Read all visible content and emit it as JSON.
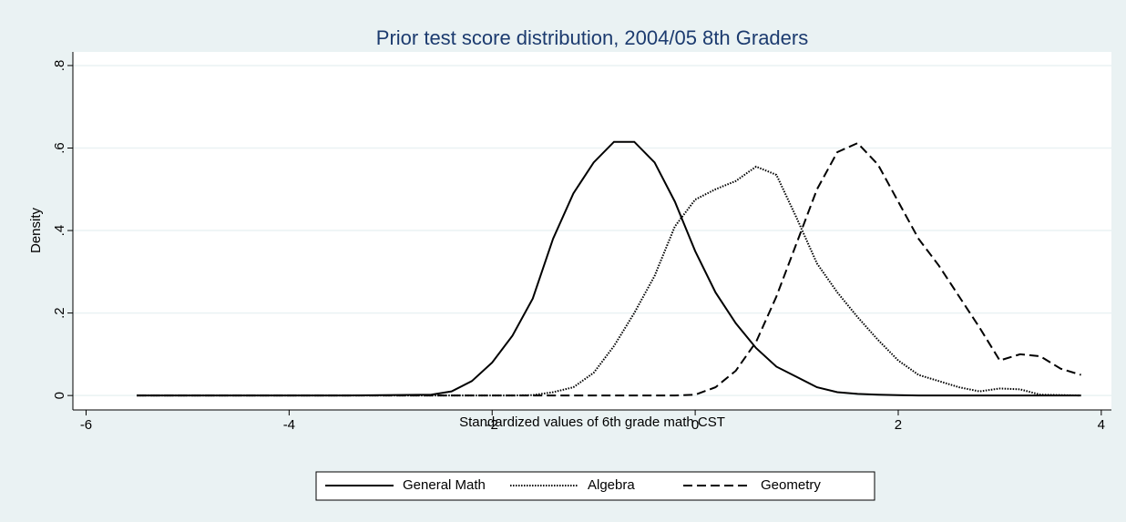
{
  "chart_data": {
    "type": "line",
    "title": "Prior test score distribution, 2004/05 8th Graders",
    "x_label": "Standardized values of 6th grade math CST",
    "y_label": "Density",
    "x": [
      -5.5,
      -4.5,
      -3.5,
      -2.6,
      -2.4,
      -2.2,
      -2.0,
      -1.8,
      -1.6,
      -1.4,
      -1.2,
      -1.0,
      -0.8,
      -0.6,
      -0.4,
      -0.2,
      0,
      0.2,
      0.4,
      0.6,
      0.8,
      1.0,
      1.2,
      1.4,
      1.6,
      1.8,
      2.0,
      2.2,
      2.4,
      2.6,
      2.8,
      3.0,
      3.2,
      3.4,
      3.6,
      3.8
    ],
    "series": [
      {
        "name": "General Math",
        "color": "#000000",
        "dash": "solid",
        "values": [
          0,
          0,
          0,
          0.002,
          0.01,
          0.035,
          0.08,
          0.145,
          0.235,
          0.38,
          0.49,
          0.565,
          0.615,
          0.615,
          0.565,
          0.47,
          0.35,
          0.25,
          0.175,
          0.115,
          0.07,
          0.045,
          0.02,
          0.008,
          0.004,
          0.002,
          0.001,
          0,
          0,
          0,
          0,
          0,
          0,
          0,
          0,
          0
        ]
      },
      {
        "name": "Algebra",
        "color": "#000000",
        "dash": "dot",
        "values": [
          0,
          0,
          0,
          0,
          0,
          0,
          0,
          0,
          0.001,
          0.008,
          0.02,
          0.055,
          0.12,
          0.2,
          0.29,
          0.41,
          0.475,
          0.5,
          0.52,
          0.555,
          0.535,
          0.43,
          0.32,
          0.25,
          0.19,
          0.135,
          0.085,
          0.05,
          0.035,
          0.02,
          0.01,
          0.017,
          0.015,
          0.002,
          0.001,
          0
        ]
      },
      {
        "name": "Geometry",
        "color": "#000000",
        "dash": "dash",
        "values": [
          0,
          0,
          0,
          0,
          0,
          0,
          0,
          0,
          0,
          0,
          0,
          0,
          0,
          0,
          0,
          0,
          0.002,
          0.02,
          0.06,
          0.13,
          0.24,
          0.37,
          0.5,
          0.59,
          0.612,
          0.56,
          0.47,
          0.38,
          0.315,
          0.24,
          0.165,
          0.085,
          0.1,
          0.095,
          0.065,
          0.05
        ]
      }
    ],
    "xlim": [
      -6.13,
      4.1
    ],
    "ylim": [
      -0.035,
      0.833
    ],
    "xticks": [
      -6,
      -4,
      -2,
      0,
      2,
      4
    ],
    "yticks": [
      0,
      {
        "value": 0.2,
        "label": ".2"
      },
      {
        "value": 0.4,
        "label": ".4"
      },
      {
        "value": 0.6,
        "label": ".6"
      },
      {
        "value": 0.8,
        "label": ".8"
      }
    ],
    "grid": true,
    "legend": "bottom"
  }
}
